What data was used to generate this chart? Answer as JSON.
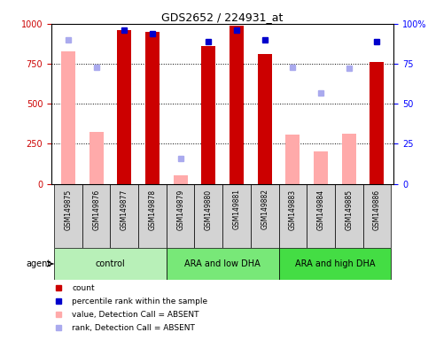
{
  "title": "GDS2652 / 224931_at",
  "samples": [
    "GSM149875",
    "GSM149876",
    "GSM149877",
    "GSM149878",
    "GSM149879",
    "GSM149880",
    "GSM149881",
    "GSM149882",
    "GSM149883",
    "GSM149884",
    "GSM149885",
    "GSM149886"
  ],
  "groups": [
    {
      "name": "control",
      "start": 0,
      "end": 4
    },
    {
      "name": "ARA and low DHA",
      "start": 4,
      "end": 8
    },
    {
      "name": "ARA and high DHA",
      "start": 8,
      "end": 12
    }
  ],
  "red_bars": [
    null,
    null,
    960,
    950,
    null,
    860,
    990,
    810,
    null,
    null,
    null,
    760
  ],
  "pink_bars": [
    830,
    325,
    null,
    null,
    55,
    null,
    null,
    null,
    305,
    205,
    315,
    null
  ],
  "blue_squares": [
    null,
    null,
    960,
    940,
    null,
    890,
    960,
    900,
    null,
    null,
    null,
    890
  ],
  "light_blue_squares": [
    900,
    730,
    null,
    null,
    160,
    null,
    null,
    null,
    730,
    570,
    720,
    null
  ],
  "yticks_left": [
    0,
    250,
    500,
    750,
    1000
  ],
  "yticks_right": [
    0,
    25,
    50,
    75,
    100
  ],
  "bar_width": 0.5,
  "red_color": "#cc0000",
  "pink_color": "#ffaaaa",
  "blue_color": "#0000cc",
  "light_blue_color": "#aaaaee",
  "group_colors": [
    "#b8f0b8",
    "#78e878",
    "#44dd44"
  ],
  "grey_color": "#d3d3d3"
}
